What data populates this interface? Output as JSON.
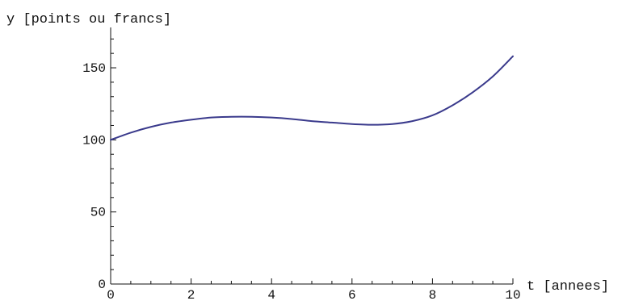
{
  "chart_data": {
    "type": "line",
    "xlabel": "t [annees]",
    "ylabel": "y [points ou francs]",
    "xlim": [
      0,
      10
    ],
    "ylim": [
      0,
      178
    ],
    "x_major_ticks": [
      0,
      2,
      4,
      6,
      8,
      10
    ],
    "x_minor_step": 0.5,
    "y_major_ticks": [
      0,
      50,
      100,
      150
    ],
    "y_minor_step": 10,
    "grid": false,
    "series_color": "#3a3a8c",
    "series": [
      {
        "x": [
          0,
          0.5,
          1,
          1.5,
          2,
          2.5,
          3,
          3.5,
          4,
          4.5,
          5,
          5.5,
          6,
          6.5,
          7,
          7.5,
          8,
          8.5,
          9,
          9.5,
          10
        ],
        "y": [
          100,
          105,
          109,
          112,
          114,
          115.5,
          116,
          116,
          115.5,
          114.5,
          113,
          112,
          111,
          110.5,
          111,
          113,
          117,
          124,
          133,
          144,
          158
        ]
      }
    ]
  }
}
